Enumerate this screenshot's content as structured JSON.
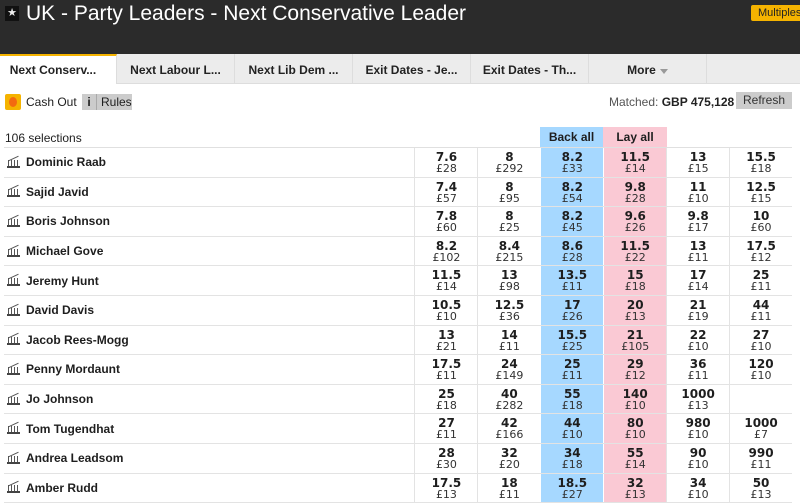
{
  "header": {
    "title": "UK - Party Leaders - Next Conservative Leader",
    "multiples": "Multiples",
    "star_icon": "star-icon"
  },
  "tabs": [
    "Next Conserv...",
    "Next Labour L...",
    "Next Lib Dem ...",
    "Exit Dates - Je...",
    "Exit Dates - Th...",
    "More"
  ],
  "toolbar": {
    "cash_out": "Cash Out",
    "rules_icon": "i",
    "rules": "Rules",
    "matched_label": "Matched:",
    "matched_value": "GBP 475,128",
    "refresh": "Refresh"
  },
  "market": {
    "selections": "106 selections",
    "back_all": "Back all",
    "lay_all": "Lay all"
  },
  "colors": {
    "back": "#a6d8ff",
    "lay": "#fac9d4",
    "accent": "#f5b300"
  },
  "runners": [
    {
      "name": "Dominic Raab",
      "prices": [
        [
          "7.6",
          "£28"
        ],
        [
          "8",
          "£292"
        ],
        [
          "8.2",
          "£33"
        ],
        [
          "11.5",
          "£14"
        ],
        [
          "13",
          "£15"
        ],
        [
          "15.5",
          "£18"
        ]
      ]
    },
    {
      "name": "Sajid Javid",
      "prices": [
        [
          "7.4",
          "£57"
        ],
        [
          "8",
          "£95"
        ],
        [
          "8.2",
          "£54"
        ],
        [
          "9.8",
          "£28"
        ],
        [
          "11",
          "£10"
        ],
        [
          "12.5",
          "£15"
        ]
      ]
    },
    {
      "name": "Boris Johnson",
      "prices": [
        [
          "7.8",
          "£60"
        ],
        [
          "8",
          "£25"
        ],
        [
          "8.2",
          "£45"
        ],
        [
          "9.6",
          "£26"
        ],
        [
          "9.8",
          "£17"
        ],
        [
          "10",
          "£60"
        ]
      ]
    },
    {
      "name": "Michael Gove",
      "prices": [
        [
          "8.2",
          "£102"
        ],
        [
          "8.4",
          "£215"
        ],
        [
          "8.6",
          "£28"
        ],
        [
          "11.5",
          "£22"
        ],
        [
          "13",
          "£11"
        ],
        [
          "17.5",
          "£12"
        ]
      ]
    },
    {
      "name": "Jeremy Hunt",
      "prices": [
        [
          "11.5",
          "£14"
        ],
        [
          "13",
          "£98"
        ],
        [
          "13.5",
          "£11"
        ],
        [
          "15",
          "£18"
        ],
        [
          "17",
          "£14"
        ],
        [
          "25",
          "£11"
        ]
      ]
    },
    {
      "name": "David Davis",
      "prices": [
        [
          "10.5",
          "£10"
        ],
        [
          "12.5",
          "£36"
        ],
        [
          "17",
          "£26"
        ],
        [
          "20",
          "£13"
        ],
        [
          "21",
          "£19"
        ],
        [
          "44",
          "£11"
        ]
      ]
    },
    {
      "name": "Jacob Rees-Mogg",
      "prices": [
        [
          "13",
          "£21"
        ],
        [
          "14",
          "£11"
        ],
        [
          "15.5",
          "£25"
        ],
        [
          "21",
          "£105"
        ],
        [
          "22",
          "£10"
        ],
        [
          "27",
          "£10"
        ]
      ]
    },
    {
      "name": "Penny Mordaunt",
      "prices": [
        [
          "17.5",
          "£11"
        ],
        [
          "24",
          "£149"
        ],
        [
          "25",
          "£11"
        ],
        [
          "29",
          "£12"
        ],
        [
          "36",
          "£11"
        ],
        [
          "120",
          "£10"
        ]
      ]
    },
    {
      "name": "Jo Johnson",
      "prices": [
        [
          "25",
          "£18"
        ],
        [
          "40",
          "£282"
        ],
        [
          "55",
          "£18"
        ],
        [
          "140",
          "£10"
        ],
        [
          "1000",
          "£13"
        ],
        [
          "",
          ""
        ]
      ]
    },
    {
      "name": "Tom Tugendhat",
      "prices": [
        [
          "27",
          "£11"
        ],
        [
          "42",
          "£166"
        ],
        [
          "44",
          "£10"
        ],
        [
          "80",
          "£10"
        ],
        [
          "980",
          "£10"
        ],
        [
          "1000",
          "£7"
        ]
      ]
    },
    {
      "name": "Andrea Leadsom",
      "prices": [
        [
          "28",
          "£30"
        ],
        [
          "32",
          "£20"
        ],
        [
          "34",
          "£18"
        ],
        [
          "55",
          "£14"
        ],
        [
          "90",
          "£10"
        ],
        [
          "990",
          "£11"
        ]
      ]
    },
    {
      "name": "Amber Rudd",
      "prices": [
        [
          "17.5",
          "£13"
        ],
        [
          "18",
          "£11"
        ],
        [
          "18.5",
          "£27"
        ],
        [
          "32",
          "£13"
        ],
        [
          "34",
          "£10"
        ],
        [
          "50",
          "£13"
        ]
      ]
    }
  ]
}
